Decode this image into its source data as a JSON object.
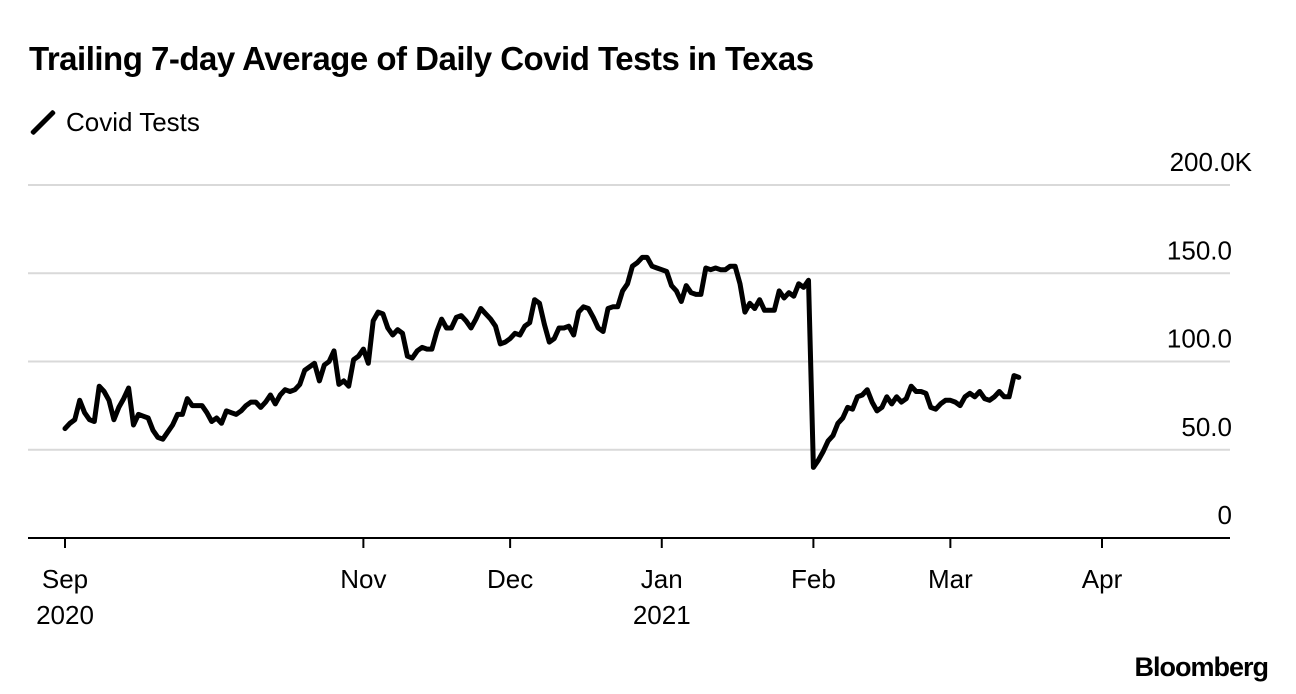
{
  "chart_data": {
    "type": "line",
    "title": "Trailing 7-day Average of Daily Covid Tests in Texas",
    "legend": {
      "placement": "top-left",
      "entries": [
        "Covid Tests"
      ]
    },
    "series": [
      {
        "name": "Covid Tests",
        "color": "#000000",
        "points": [
          [
            "2020-09-01",
            62000
          ],
          [
            "2020-09-02",
            65000
          ],
          [
            "2020-09-03",
            67000
          ],
          [
            "2020-09-04",
            78000
          ],
          [
            "2020-09-05",
            71000
          ],
          [
            "2020-09-06",
            67000
          ],
          [
            "2020-09-07",
            66000
          ],
          [
            "2020-09-08",
            86000
          ],
          [
            "2020-09-09",
            83000
          ],
          [
            "2020-09-10",
            78000
          ],
          [
            "2020-09-11",
            67000
          ],
          [
            "2020-09-12",
            74000
          ],
          [
            "2020-09-13",
            79000
          ],
          [
            "2020-09-14",
            85000
          ],
          [
            "2020-09-15",
            64000
          ],
          [
            "2020-09-16",
            70000
          ],
          [
            "2020-09-17",
            69000
          ],
          [
            "2020-09-18",
            68000
          ],
          [
            "2020-09-19",
            61000
          ],
          [
            "2020-09-20",
            57000
          ],
          [
            "2020-09-21",
            56000
          ],
          [
            "2020-09-22",
            60000
          ],
          [
            "2020-09-23",
            64000
          ],
          [
            "2020-09-24",
            70000
          ],
          [
            "2020-09-25",
            70000
          ],
          [
            "2020-09-26",
            79000
          ],
          [
            "2020-09-27",
            75000
          ],
          [
            "2020-09-28",
            75000
          ],
          [
            "2020-09-29",
            75000
          ],
          [
            "2020-09-30",
            71000
          ],
          [
            "2020-10-01",
            66000
          ],
          [
            "2020-10-02",
            68000
          ],
          [
            "2020-10-03",
            65000
          ],
          [
            "2020-10-04",
            72000
          ],
          [
            "2020-10-05",
            71000
          ],
          [
            "2020-10-06",
            70000
          ],
          [
            "2020-10-07",
            72000
          ],
          [
            "2020-10-08",
            75000
          ],
          [
            "2020-10-09",
            77000
          ],
          [
            "2020-10-10",
            77000
          ],
          [
            "2020-10-11",
            74000
          ],
          [
            "2020-10-12",
            77000
          ],
          [
            "2020-10-13",
            81000
          ],
          [
            "2020-10-14",
            76000
          ],
          [
            "2020-10-15",
            81000
          ],
          [
            "2020-10-16",
            84000
          ],
          [
            "2020-10-17",
            83000
          ],
          [
            "2020-10-18",
            84000
          ],
          [
            "2020-10-19",
            87000
          ],
          [
            "2020-10-20",
            95000
          ],
          [
            "2020-10-21",
            97000
          ],
          [
            "2020-10-22",
            99000
          ],
          [
            "2020-10-23",
            89000
          ],
          [
            "2020-10-24",
            98000
          ],
          [
            "2020-10-25",
            100000
          ],
          [
            "2020-10-26",
            106000
          ],
          [
            "2020-10-27",
            87000
          ],
          [
            "2020-10-28",
            89000
          ],
          [
            "2020-10-29",
            86000
          ],
          [
            "2020-10-30",
            101000
          ],
          [
            "2020-10-31",
            103000
          ],
          [
            "2020-11-01",
            107000
          ],
          [
            "2020-11-02",
            99000
          ],
          [
            "2020-11-03",
            123000
          ],
          [
            "2020-11-04",
            128000
          ],
          [
            "2020-11-05",
            127000
          ],
          [
            "2020-11-06",
            119000
          ],
          [
            "2020-11-07",
            115000
          ],
          [
            "2020-11-08",
            118000
          ],
          [
            "2020-11-09",
            116000
          ],
          [
            "2020-11-10",
            103000
          ],
          [
            "2020-11-11",
            102000
          ],
          [
            "2020-11-12",
            106000
          ],
          [
            "2020-11-13",
            108000
          ],
          [
            "2020-11-14",
            107000
          ],
          [
            "2020-11-15",
            107000
          ],
          [
            "2020-11-16",
            117000
          ],
          [
            "2020-11-17",
            124000
          ],
          [
            "2020-11-18",
            119000
          ],
          [
            "2020-11-19",
            119000
          ],
          [
            "2020-11-20",
            125000
          ],
          [
            "2020-11-21",
            126000
          ],
          [
            "2020-11-22",
            123000
          ],
          [
            "2020-11-23",
            119000
          ],
          [
            "2020-11-24",
            124000
          ],
          [
            "2020-11-25",
            130000
          ],
          [
            "2020-11-26",
            127000
          ],
          [
            "2020-11-27",
            124000
          ],
          [
            "2020-11-28",
            120000
          ],
          [
            "2020-11-29",
            110000
          ],
          [
            "2020-11-30",
            111000
          ],
          [
            "2020-12-01",
            113000
          ],
          [
            "2020-12-02",
            116000
          ],
          [
            "2020-12-03",
            115000
          ],
          [
            "2020-12-04",
            120000
          ],
          [
            "2020-12-05",
            122000
          ],
          [
            "2020-12-06",
            135000
          ],
          [
            "2020-12-07",
            133000
          ],
          [
            "2020-12-08",
            121000
          ],
          [
            "2020-12-09",
            111000
          ],
          [
            "2020-12-10",
            113000
          ],
          [
            "2020-12-11",
            119000
          ],
          [
            "2020-12-12",
            119000
          ],
          [
            "2020-12-13",
            120000
          ],
          [
            "2020-12-14",
            115000
          ],
          [
            "2020-12-15",
            128000
          ],
          [
            "2020-12-16",
            131000
          ],
          [
            "2020-12-17",
            130000
          ],
          [
            "2020-12-18",
            125000
          ],
          [
            "2020-12-19",
            119000
          ],
          [
            "2020-12-20",
            117000
          ],
          [
            "2020-12-21",
            130000
          ],
          [
            "2020-12-22",
            131000
          ],
          [
            "2020-12-23",
            131000
          ],
          [
            "2020-12-24",
            140000
          ],
          [
            "2020-12-25",
            144000
          ],
          [
            "2020-12-26",
            154000
          ],
          [
            "2020-12-27",
            156000
          ],
          [
            "2020-12-28",
            159000
          ],
          [
            "2020-12-29",
            159000
          ],
          [
            "2020-12-30",
            154000
          ],
          [
            "2020-12-31",
            153000
          ],
          [
            "2021-01-01",
            152000
          ],
          [
            "2021-01-02",
            151000
          ],
          [
            "2021-01-03",
            143000
          ],
          [
            "2021-01-04",
            140000
          ],
          [
            "2021-01-05",
            134000
          ],
          [
            "2021-01-06",
            143000
          ],
          [
            "2021-01-07",
            139000
          ],
          [
            "2021-01-08",
            138000
          ],
          [
            "2021-01-09",
            138000
          ],
          [
            "2021-01-10",
            153000
          ],
          [
            "2021-01-11",
            152000
          ],
          [
            "2021-01-12",
            153000
          ],
          [
            "2021-01-13",
            152000
          ],
          [
            "2021-01-14",
            152000
          ],
          [
            "2021-01-15",
            154000
          ],
          [
            "2021-01-16",
            154000
          ],
          [
            "2021-01-17",
            144000
          ],
          [
            "2021-01-18",
            128000
          ],
          [
            "2021-01-19",
            133000
          ],
          [
            "2021-01-20",
            130000
          ],
          [
            "2021-01-21",
            135000
          ],
          [
            "2021-01-22",
            129000
          ],
          [
            "2021-01-23",
            129000
          ],
          [
            "2021-01-24",
            129000
          ],
          [
            "2021-01-25",
            140000
          ],
          [
            "2021-01-26",
            136000
          ],
          [
            "2021-01-27",
            139000
          ],
          [
            "2021-01-28",
            137000
          ],
          [
            "2021-01-29",
            144000
          ],
          [
            "2021-01-30",
            142000
          ],
          [
            "2021-01-31",
            146000
          ],
          [
            "2021-02-01",
            40000
          ],
          [
            "2021-02-02",
            44000
          ],
          [
            "2021-02-03",
            49000
          ],
          [
            "2021-02-04",
            55000
          ],
          [
            "2021-02-05",
            58000
          ],
          [
            "2021-02-06",
            65000
          ],
          [
            "2021-02-07",
            68000
          ],
          [
            "2021-02-08",
            74000
          ],
          [
            "2021-02-09",
            73000
          ],
          [
            "2021-02-10",
            80000
          ],
          [
            "2021-02-11",
            81000
          ],
          [
            "2021-02-12",
            84000
          ],
          [
            "2021-02-13",
            77000
          ],
          [
            "2021-02-14",
            72000
          ],
          [
            "2021-02-15",
            74000
          ],
          [
            "2021-02-16",
            80000
          ],
          [
            "2021-02-17",
            76000
          ],
          [
            "2021-02-18",
            80000
          ],
          [
            "2021-02-19",
            77000
          ],
          [
            "2021-02-20",
            79000
          ],
          [
            "2021-02-21",
            86000
          ],
          [
            "2021-02-22",
            83000
          ],
          [
            "2021-02-23",
            83000
          ],
          [
            "2021-02-24",
            82000
          ],
          [
            "2021-02-25",
            74000
          ],
          [
            "2021-02-26",
            73000
          ],
          [
            "2021-02-27",
            76000
          ],
          [
            "2021-02-28",
            78000
          ],
          [
            "2021-03-01",
            78000
          ],
          [
            "2021-03-02",
            77000
          ],
          [
            "2021-03-03",
            75000
          ],
          [
            "2021-03-04",
            80000
          ],
          [
            "2021-03-05",
            82000
          ],
          [
            "2021-03-06",
            80000
          ],
          [
            "2021-03-07",
            83000
          ],
          [
            "2021-03-08",
            79000
          ],
          [
            "2021-03-09",
            78000
          ],
          [
            "2021-03-10",
            80000
          ],
          [
            "2021-03-11",
            83000
          ],
          [
            "2021-03-12",
            80000
          ],
          [
            "2021-03-13",
            80000
          ],
          [
            "2021-03-14",
            92000
          ],
          [
            "2021-03-15",
            91000
          ]
        ]
      }
    ],
    "yaxis": {
      "ticks": [
        "0",
        "50.0",
        "100.0",
        "150.0",
        "200.0K"
      ],
      "range": [
        0,
        200000
      ],
      "side": "right",
      "grid": true
    },
    "xaxis": {
      "ticks": [
        {
          "label": "Sep",
          "sublabel": "2020",
          "date": "2020-09-01"
        },
        {
          "label": "Nov",
          "sublabel": "",
          "date": "2020-11-01"
        },
        {
          "label": "Dec",
          "sublabel": "",
          "date": "2020-12-01"
        },
        {
          "label": "Jan",
          "sublabel": "2021",
          "date": "2021-01-01"
        },
        {
          "label": "Feb",
          "sublabel": "",
          "date": "2021-02-01"
        },
        {
          "label": "Mar",
          "sublabel": "",
          "date": "2021-03-01"
        },
        {
          "label": "Apr",
          "sublabel": "",
          "date": "2021-04-01"
        }
      ]
    }
  },
  "source": {
    "brand": "Bloomberg"
  }
}
